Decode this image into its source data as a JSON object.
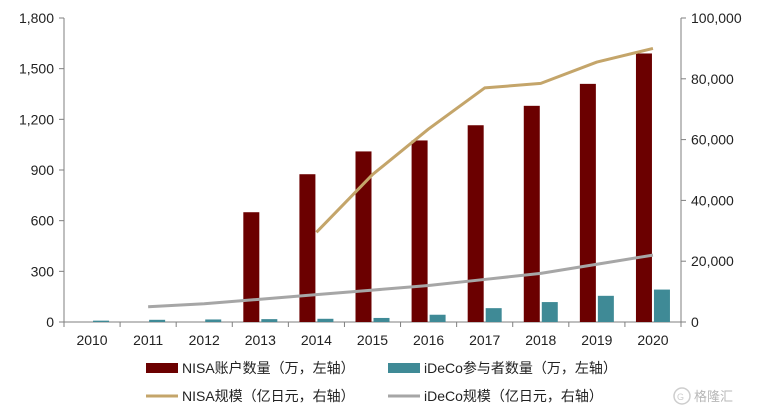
{
  "chart_data": {
    "type": "bar",
    "categories": [
      "2010",
      "2011",
      "2012",
      "2013",
      "2014",
      "2015",
      "2016",
      "2017",
      "2018",
      "2019",
      "2020"
    ],
    "y_left": {
      "ticks": [
        "0",
        "300",
        "600",
        "900",
        "1,200",
        "1,500",
        "1,800"
      ],
      "ylim": [
        0,
        1800
      ]
    },
    "y_right": {
      "ticks": [
        "0",
        "20,000",
        "40,000",
        "60,000",
        "80,000",
        "100,000"
      ],
      "ylim": [
        0,
        100000
      ]
    },
    "grid": false,
    "legend_position": "bottom",
    "series": [
      {
        "name": "NISA账户数量（万，左轴）",
        "type": "bar",
        "axis": "left",
        "color": "#6b0000",
        "values": [
          null,
          null,
          null,
          650,
          875,
          1010,
          1075,
          1165,
          1280,
          1410,
          1590
        ]
      },
      {
        "name": "iDeCo参与者数量（万，左轴）",
        "type": "bar",
        "axis": "left",
        "color": "#3f8a96",
        "values": [
          8,
          13,
          15,
          17,
          19,
          24,
          43,
          82,
          118,
          155,
          192
        ]
      },
      {
        "name": "NISA规模（亿日元，右轴）",
        "type": "line",
        "axis": "right",
        "color": "#c4a56a",
        "values": [
          null,
          null,
          null,
          null,
          29500,
          48500,
          63500,
          77000,
          78500,
          85500,
          90000
        ]
      },
      {
        "name": "iDeCo规模（亿日元，右轴）",
        "type": "line",
        "axis": "right",
        "color": "#a6a6a6",
        "values": [
          null,
          5000,
          6000,
          7500,
          9000,
          10500,
          12000,
          14000,
          16000,
          19000,
          22000
        ]
      }
    ]
  },
  "watermark": {
    "text": "格隆汇",
    "icon": "glh-logo-icon"
  }
}
